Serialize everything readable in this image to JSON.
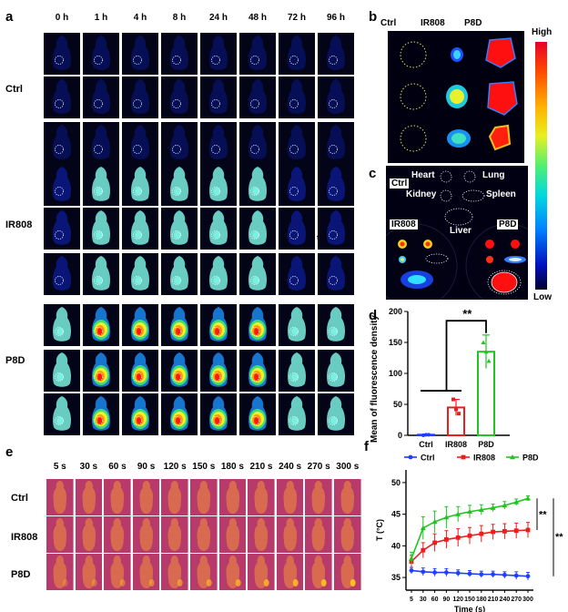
{
  "panels": {
    "a": "a",
    "b": "b",
    "c": "c",
    "d": "d",
    "e": "e",
    "f": "f"
  },
  "a": {
    "times": [
      "0 h",
      "1 h",
      "4 h",
      "8 h",
      "24 h",
      "48 h",
      "72 h",
      "96 h"
    ],
    "groups": [
      "Ctrl",
      "IR808",
      "P8D"
    ],
    "stray_mark": "t"
  },
  "b": {
    "columns": [
      "Ctrl",
      "IR808",
      "P8D"
    ],
    "scale_high": "High",
    "scale_low": "Low"
  },
  "c": {
    "organs": [
      "Heart",
      "Lung",
      "Kidney",
      "Spleen",
      "Liver"
    ],
    "groups": [
      "Ctrl",
      "IR808",
      "P8D"
    ]
  },
  "d": {
    "chart_data": {
      "type": "bar",
      "categories": [
        "Ctrl",
        "IR808",
        "P8D"
      ],
      "values": [
        1,
        45,
        135
      ],
      "errors": [
        1,
        13,
        27
      ],
      "points": [
        [
          0,
          1,
          1
        ],
        [
          58,
          42,
          35
        ],
        [
          150,
          135,
          120
        ]
      ],
      "colors": [
        "#1f3fff",
        "#ee1c1c",
        "#22c322"
      ],
      "ylabel": "Mean of fluorescence density",
      "ylim": [
        0,
        200
      ],
      "yticks": [
        0,
        50,
        100,
        150,
        200
      ],
      "significance": "**",
      "grid": false
    }
  },
  "e": {
    "times": [
      "5 s",
      "30 s",
      "60 s",
      "90 s",
      "120 s",
      "150 s",
      "180 s",
      "210 s",
      "240 s",
      "270 s",
      "300 s"
    ],
    "groups": [
      "Ctrl",
      "IR808",
      "P8D"
    ]
  },
  "f": {
    "chart_data": {
      "type": "line",
      "x": [
        5,
        30,
        60,
        90,
        120,
        150,
        180,
        210,
        240,
        270,
        300
      ],
      "xticks": [
        "5",
        "30",
        "60",
        "90",
        "120",
        "150",
        "180",
        "210",
        "240",
        "270",
        "300"
      ],
      "series": [
        {
          "name": "Ctrl",
          "color": "#1f3fff",
          "marker": "circle",
          "values": [
            36.1,
            35.9,
            35.8,
            35.8,
            35.7,
            35.6,
            35.5,
            35.5,
            35.4,
            35.3,
            35.2
          ],
          "errors": [
            0.5,
            0.6,
            0.6,
            0.6,
            0.5,
            0.5,
            0.5,
            0.5,
            0.5,
            0.6,
            0.6
          ]
        },
        {
          "name": "IR808",
          "color": "#ee1c1c",
          "marker": "square",
          "values": [
            37.5,
            39.3,
            40.5,
            41.0,
            41.3,
            41.6,
            41.9,
            42.2,
            42.3,
            42.4,
            42.5
          ],
          "errors": [
            1.0,
            1.2,
            1.4,
            1.4,
            1.4,
            1.3,
            1.3,
            1.2,
            1.2,
            1.2,
            1.2
          ]
        },
        {
          "name": "P8D",
          "color": "#22c322",
          "marker": "triangle",
          "values": [
            38.0,
            42.8,
            43.8,
            44.5,
            45.0,
            45.4,
            45.7,
            46.0,
            46.4,
            46.9,
            47.5
          ],
          "errors": [
            1.0,
            1.8,
            1.7,
            1.7,
            1.2,
            1.0,
            0.8,
            0.6,
            0.6,
            0.5,
            0.4
          ]
        }
      ],
      "xlabel": "Time (s)",
      "ylabel": "T (°C)",
      "ylim": [
        33,
        52
      ],
      "yticks": [
        35,
        40,
        45,
        50
      ],
      "significance": [
        "**",
        "**"
      ],
      "legend": "top",
      "grid": false
    }
  }
}
